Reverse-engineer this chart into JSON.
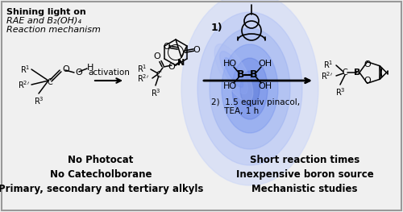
{
  "title_line1": "Shining light on",
  "title_line2": "RAE and B₂(OH)₄",
  "title_line3": "Reaction mechanism",
  "arrow_label": "activation",
  "step1_label": "1)",
  "step2_label1": "2)  1.5 equiv pinacol,",
  "step2_label2": "     TEA, 1 h",
  "bottom_left": [
    "No Photocat",
    "No Catecholborane",
    "Primary, secondary and tertiary alkyls"
  ],
  "bottom_right": [
    "Short reaction times",
    "Inexpensive boron source",
    "Mechanistic studies"
  ],
  "bg_color": "#f0f0f0",
  "border_color": "#999999",
  "text_color": "#000000",
  "figsize": [
    5.0,
    2.63
  ],
  "dpi": 100
}
